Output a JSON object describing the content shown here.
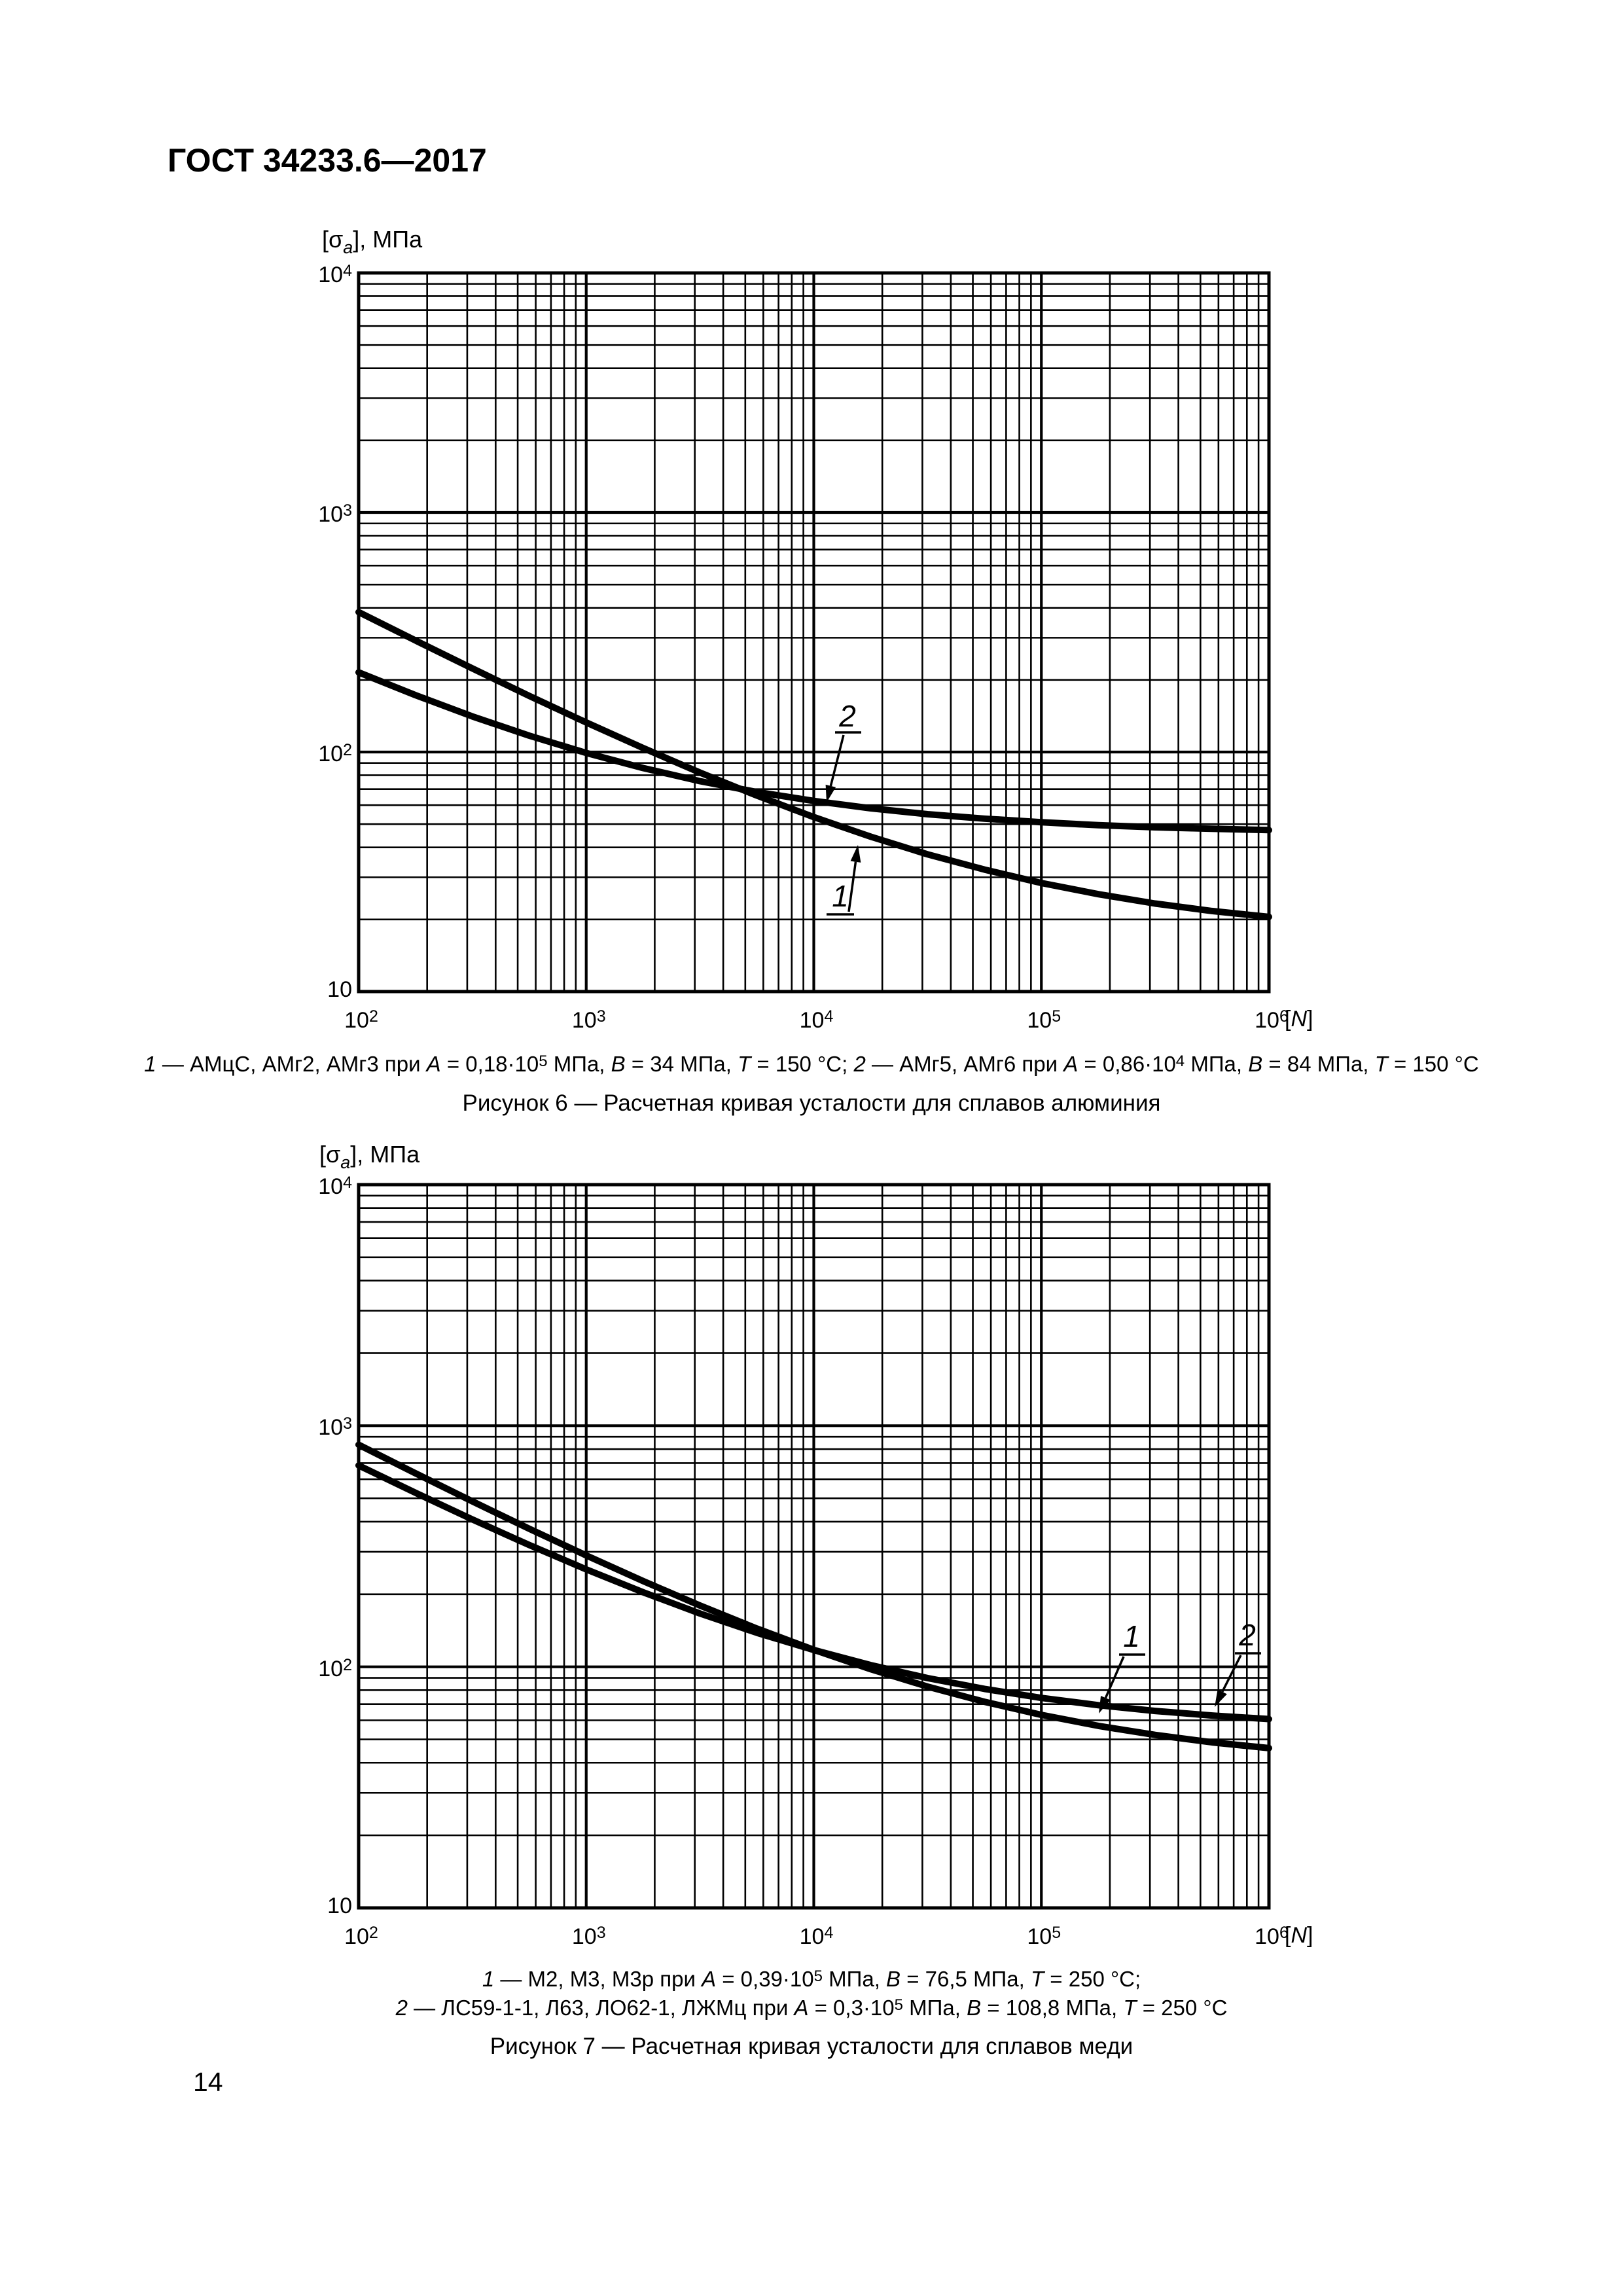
{
  "page": {
    "header": "ГОСТ 34233.6—2017",
    "number": "14"
  },
  "axis_labels": {
    "y": {
      "pre": "[σ",
      "sub": "a",
      "post": "], МПа"
    },
    "x": {
      "pre": "[",
      "var": "N",
      "post": "]"
    }
  },
  "ticks": {
    "x": [
      {
        "base": "10",
        "exp": "2"
      },
      {
        "base": "10",
        "exp": "3"
      },
      {
        "base": "10",
        "exp": "4"
      },
      {
        "base": "10",
        "exp": "5"
      },
      {
        "base": "10",
        "exp": "6"
      }
    ],
    "y": [
      {
        "base": "10",
        "exp": "4"
      },
      {
        "base": "10",
        "exp": "3"
      },
      {
        "base": "10",
        "exp": "2"
      },
      {
        "base": "10",
        "exp": null
      }
    ]
  },
  "chart_data": [
    {
      "figure": "Рисунок 6",
      "title": "Рисунок 6 — Расчетная кривая усталости для сплавов алюминия",
      "type": "line",
      "x_scale": "log",
      "y_scale": "log",
      "x_range": [
        100,
        1000000
      ],
      "y_range": [
        10,
        10000
      ],
      "xlabel": "[N]",
      "ylabel": "[σa], МПа",
      "grid": "log-major-minor",
      "series": [
        {
          "label": "1",
          "materials": "АМцС, АМг2, АМг3",
          "A": "0,18·10⁵ МПа",
          "B": "34 МПа",
          "T": "150 °С",
          "N": [
            100,
            178,
            316,
            562,
            1000,
            1780,
            3160,
            5620,
            10000,
            17800,
            31600,
            56200,
            100000,
            178000,
            316000,
            562000,
            1000000
          ],
          "sigma": [
            383.9,
            292.0,
            223.3,
            171.6,
            132.9,
            103.9,
            82.1,
            65.8,
            53.5,
            44.3,
            37.4,
            32.3,
            28.4,
            25.5,
            23.3,
            21.7,
            20.5
          ]
        },
        {
          "label": "2",
          "materials": "АМг5, АМг6",
          "A": "0,86·10⁴ МПа",
          "B": "84 МПа",
          "T": "150 °С",
          "N": [
            100,
            178,
            316,
            562,
            1000,
            1780,
            3160,
            5620,
            10000,
            17800,
            31600,
            56200,
            100000,
            178000,
            316000,
            562000,
            1000000
          ],
          "sigma": [
            215.0,
            172.6,
            140.8,
            117.0,
            99.1,
            85.7,
            75.6,
            68.1,
            62.5,
            58.2,
            55.0,
            52.7,
            50.9,
            49.5,
            48.5,
            47.8,
            47.2
          ]
        }
      ],
      "caption_lines": [
        [
          {
            "t": "1",
            "i": 1
          },
          {
            "t": " — АМцС, АМг2, АМг3 при "
          },
          {
            "t": "A",
            "i": 1
          },
          {
            "t": " = 0,18·10"
          },
          {
            "t": "5",
            "sup": 1
          },
          {
            "t": " МПа, "
          },
          {
            "t": "B",
            "i": 1
          },
          {
            "t": " = 34 МПа, "
          },
          {
            "t": "T",
            "i": 1
          },
          {
            "t": " = 150 °С; "
          },
          {
            "t": "2",
            "i": 1
          },
          {
            "t": " — АМг5, АМг6 при "
          },
          {
            "t": "A",
            "i": 1
          },
          {
            "t": " = 0,86·10"
          },
          {
            "t": "4",
            "sup": 1
          },
          {
            "t": " МПа, "
          },
          {
            "t": "B",
            "i": 1
          },
          {
            "t": " = 84 МПа, "
          },
          {
            "t": "T",
            "i": 1
          },
          {
            "t": " = 150 °С"
          }
        ]
      ]
    },
    {
      "figure": "Рисунок 7",
      "title": "Рисунок 7 — Расчетная кривая усталости для сплавов меди",
      "type": "line",
      "x_scale": "log",
      "y_scale": "log",
      "x_range": [
        100,
        1000000
      ],
      "y_range": [
        10,
        10000
      ],
      "xlabel": "[N]",
      "ylabel": "[σa], МПа",
      "grid": "log-major-minor",
      "series": [
        {
          "label": "1",
          "materials": "М2, М3, М3р",
          "A": "0,39·10⁵ МПа",
          "B": "76,5 МПа",
          "T": "250 °С",
          "N": [
            100,
            178,
            316,
            562,
            1000,
            1780,
            3160,
            5620,
            10000,
            17800,
            31600,
            56200,
            100000,
            178000,
            316000,
            562000,
            1000000
          ],
          "sigma": [
            834.0,
            634.7,
            485.7,
            373.7,
            289.7,
            226.8,
            179.6,
            144.1,
            117.6,
            97.7,
            82.8,
            71.6,
            63.2,
            56.9,
            52.2,
            48.6,
            46.0
          ]
        },
        {
          "label": "2",
          "materials": "ЛС59-1-1, Л63, ЛО62-1, ЛЖМц",
          "A": "0,3·10⁵ МПа",
          "B": "108,8 МПа",
          "T": "250 °С",
          "N": [
            100,
            178,
            316,
            562,
            1000,
            1780,
            3160,
            5620,
            10000,
            17800,
            31600,
            56200,
            100000,
            178000,
            316000,
            562000,
            1000000
          ],
          "sigma": [
            684.4,
            526.7,
            408.7,
            320.1,
            253.6,
            203.8,
            166.4,
            138.4,
            117.4,
            101.6,
            89.8,
            81.0,
            74.3,
            69.3,
            65.6,
            62.8,
            60.7
          ]
        }
      ],
      "caption_lines": [
        [
          {
            "t": "1",
            "i": 1
          },
          {
            "t": " — М2, М3, М3р при "
          },
          {
            "t": "A",
            "i": 1
          },
          {
            "t": " = 0,39·10"
          },
          {
            "t": "5",
            "sup": 1
          },
          {
            "t": " МПа, "
          },
          {
            "t": "B",
            "i": 1
          },
          {
            "t": " = 76,5 МПа, "
          },
          {
            "t": "T",
            "i": 1
          },
          {
            "t": " = 250 °С;"
          }
        ],
        [
          {
            "t": "2",
            "i": 1
          },
          {
            "t": " — ЛС59-1-1, Л63, ЛО62-1, ЛЖМц при "
          },
          {
            "t": "A",
            "i": 1
          },
          {
            "t": " = 0,3·10"
          },
          {
            "t": "5",
            "sup": 1
          },
          {
            "t": " МПа, "
          },
          {
            "t": "B",
            "i": 1
          },
          {
            "t": " = 108,8 МПа, "
          },
          {
            "t": "T",
            "i": 1
          },
          {
            "t": " = 250 °С"
          }
        ]
      ]
    }
  ],
  "colors": {
    "ink": "#000000",
    "paper": "#ffffff"
  }
}
